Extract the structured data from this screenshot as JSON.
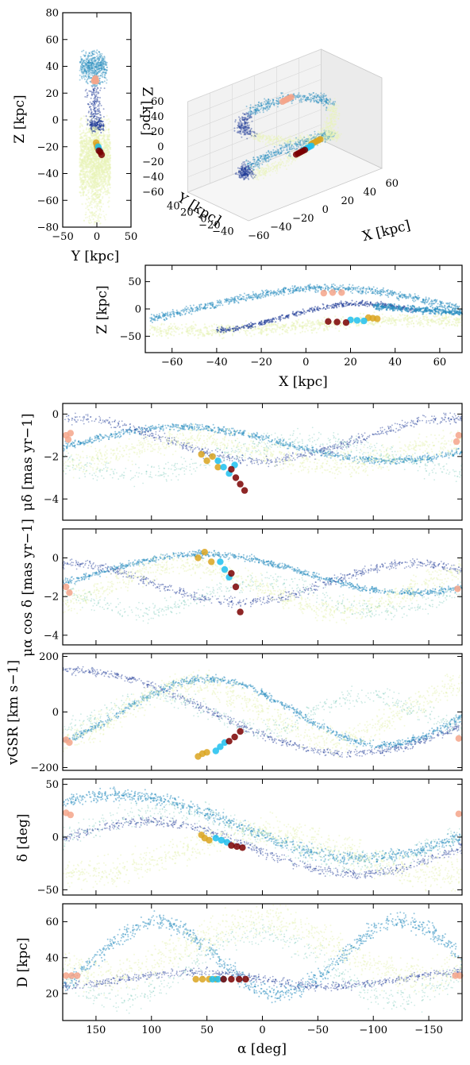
{
  "colors": {
    "stream_dark": "#0b1d5a",
    "stream_mid": "#243f99",
    "stream_teal": "#2a8ebf",
    "stream_light": "#7ecbbb",
    "stream_pale": "#e8f4b8",
    "obs_orange": "#daa520",
    "obs_cyan": "#1ec0ee",
    "obs_darkred": "#7a0000",
    "obs_salmon": "#f5a48a"
  },
  "chart_data": [
    {
      "id": "yz",
      "type": "scatter",
      "xlabel": "Y [kpc]",
      "ylabel": "Z [kpc]",
      "xlim": [
        -50,
        50
      ],
      "ylim": [
        -80,
        80
      ],
      "xticks": [
        "−50",
        "0",
        "50"
      ],
      "yticks": [
        "−80",
        "−60",
        "−40",
        "−20",
        "0",
        "20",
        "40",
        "60",
        "80"
      ],
      "series": [
        {
          "color": "obs_salmon",
          "x": [
            -4,
            -3,
            -2,
            -1
          ],
          "y": [
            29,
            30,
            31,
            29
          ]
        },
        {
          "color": "obs_orange",
          "x": [
            -1,
            0,
            1
          ],
          "y": [
            -17,
            -19,
            -21
          ]
        },
        {
          "color": "obs_cyan",
          "x": [
            2,
            3,
            4
          ],
          "y": [
            -20,
            -22,
            -23
          ]
        },
        {
          "color": "obs_darkred",
          "x": [
            3,
            5,
            7
          ],
          "y": [
            -23,
            -24,
            -26
          ]
        }
      ]
    },
    {
      "id": "xyz3d",
      "type": "scatter",
      "xlabel": "X [kpc]",
      "ylabel": "Y [kpc]",
      "zlabel": "Z [kpc]",
      "xticks": [
        "−60",
        "−40",
        "−20",
        "0",
        "20",
        "40",
        "60"
      ],
      "yticks": [
        "−40",
        "−20",
        "0",
        "20",
        "40"
      ],
      "zticks": [
        "−60",
        "−40",
        "−20",
        "0",
        "20",
        "40",
        "60"
      ]
    },
    {
      "id": "xz",
      "type": "scatter",
      "xlabel": "X [kpc]",
      "ylabel": "Z [kpc]",
      "xlim": [
        -72,
        70
      ],
      "ylim": [
        -80,
        80
      ],
      "xticks": [
        "−60",
        "−40",
        "−20",
        "0",
        "20",
        "40",
        "60"
      ],
      "yticks": [
        "−50",
        "0",
        "50"
      ],
      "series": [
        {
          "color": "obs_salmon",
          "x": [
            8,
            12,
            16
          ],
          "y": [
            29,
            30,
            30
          ]
        },
        {
          "color": "obs_orange",
          "x": [
            28,
            30,
            32
          ],
          "y": [
            -16,
            -17,
            -18
          ]
        },
        {
          "color": "obs_cyan",
          "x": [
            20,
            23,
            26
          ],
          "y": [
            -20,
            -21,
            -22
          ]
        },
        {
          "color": "obs_darkred",
          "x": [
            10,
            14,
            18
          ],
          "y": [
            -23,
            -24,
            -25
          ]
        }
      ]
    },
    {
      "id": "pmdec",
      "type": "scatter",
      "xlabel": "",
      "ylabel": "μ_δ [mas yr⁻¹]",
      "xlim": [
        180,
        -180
      ],
      "ylim": [
        -5,
        0.5
      ],
      "yticks": [
        "−4",
        "−2",
        "0"
      ],
      "series": [
        {
          "color": "obs_salmon",
          "x": [
            177,
            175,
            173,
            -177,
            -175
          ],
          "y": [
            -1.0,
            -1.2,
            -0.9,
            -1.0,
            -1.3
          ]
        },
        {
          "color": "obs_orange",
          "x": [
            55,
            50,
            45,
            40
          ],
          "y": [
            -1.9,
            -2.2,
            -2.0,
            -2.5
          ]
        },
        {
          "color": "obs_cyan",
          "x": [
            40,
            35,
            30,
            25
          ],
          "y": [
            -2.2,
            -2.5,
            -2.8,
            -2.4
          ]
        },
        {
          "color": "obs_darkred",
          "x": [
            28,
            24,
            20,
            16
          ],
          "y": [
            -2.6,
            -3.0,
            -3.3,
            -3.6
          ]
        }
      ]
    },
    {
      "id": "pmra",
      "type": "scatter",
      "xlabel": "",
      "ylabel": "μ_α cos δ [mas yr⁻¹]",
      "xlim": [
        180,
        -180
      ],
      "ylim": [
        -4.5,
        1.5
      ],
      "yticks": [
        "−4",
        "−2",
        "0"
      ],
      "series": [
        {
          "color": "obs_salmon",
          "x": [
            177,
            174,
            -176
          ],
          "y": [
            -1.5,
            -1.8,
            -1.6
          ]
        },
        {
          "color": "obs_orange",
          "x": [
            58,
            52,
            46
          ],
          "y": [
            0.0,
            0.3,
            -0.2
          ]
        },
        {
          "color": "obs_cyan",
          "x": [
            38,
            34,
            30
          ],
          "y": [
            -0.2,
            -0.6,
            -1.0
          ]
        },
        {
          "color": "obs_darkred",
          "x": [
            28,
            24,
            20
          ],
          "y": [
            -0.8,
            -1.5,
            -2.8
          ]
        }
      ]
    },
    {
      "id": "vgsr",
      "type": "scatter",
      "xlabel": "",
      "ylabel": "v_GSR [km s⁻¹]",
      "xlim": [
        180,
        -180
      ],
      "ylim": [
        -210,
        210
      ],
      "yticks": [
        "−200",
        "0",
        "200"
      ],
      "series": [
        {
          "color": "obs_salmon",
          "x": [
            177,
            174,
            -177
          ],
          "y": [
            -100,
            -110,
            -95
          ]
        },
        {
          "color": "obs_orange",
          "x": [
            58,
            54,
            50
          ],
          "y": [
            -160,
            -150,
            -145
          ]
        },
        {
          "color": "obs_cyan",
          "x": [
            42,
            38,
            34
          ],
          "y": [
            -140,
            -125,
            -110
          ]
        },
        {
          "color": "obs_darkred",
          "x": [
            30,
            25,
            20
          ],
          "y": [
            -105,
            -90,
            -70
          ]
        }
      ]
    },
    {
      "id": "dec",
      "type": "scatter",
      "xlabel": "",
      "ylabel": "δ [deg]",
      "xlim": [
        180,
        -180
      ],
      "ylim": [
        -55,
        55
      ],
      "yticks": [
        "−50",
        "0",
        "50"
      ],
      "series": [
        {
          "color": "obs_salmon",
          "x": [
            177,
            173,
            -177
          ],
          "y": [
            23,
            21,
            22
          ]
        },
        {
          "color": "obs_orange",
          "x": [
            55,
            52,
            48
          ],
          "y": [
            2,
            -1,
            -3
          ]
        },
        {
          "color": "obs_cyan",
          "x": [
            42,
            37,
            32
          ],
          "y": [
            -1,
            -3,
            -5
          ]
        },
        {
          "color": "obs_darkred",
          "x": [
            28,
            23,
            18
          ],
          "y": [
            -8,
            -9,
            -10
          ]
        }
      ]
    },
    {
      "id": "dist",
      "type": "scatter",
      "xlabel": "α [deg]",
      "ylabel": "D [kpc]",
      "xlim": [
        180,
        -180
      ],
      "ylim": [
        5,
        70
      ],
      "xticks": [
        "150",
        "100",
        "50",
        "0",
        "−50",
        "−100",
        "−150"
      ],
      "yticks": [
        "20",
        "40",
        "60"
      ],
      "series": [
        {
          "color": "obs_salmon",
          "x": [
            177,
            172,
            167,
            -174,
            -178
          ],
          "y": [
            30,
            30,
            30,
            30,
            30
          ]
        },
        {
          "color": "obs_orange",
          "x": [
            60,
            54,
            48,
            42
          ],
          "y": [
            28,
            28,
            28,
            28
          ]
        },
        {
          "color": "obs_cyan",
          "x": [
            45,
            40,
            35
          ],
          "y": [
            28,
            28,
            28
          ]
        },
        {
          "color": "obs_darkred",
          "x": [
            35,
            28,
            21,
            15
          ],
          "y": [
            28,
            28,
            28,
            28
          ]
        }
      ]
    }
  ],
  "labels": {
    "yz_x": "Y [kpc]",
    "yz_y": "Z [kpc]",
    "xz_x": "X [kpc]",
    "xz_y": "Z [kpc]",
    "d3_x": "X [kpc]",
    "d3_y": "Y [kpc]",
    "d3_z": "Z [kpc]",
    "pmdec_y": "μδ [mas yr−1]",
    "pmra_y": "μα cos δ [mas yr−1]",
    "vgsr_y": "vGSR [km s−1]",
    "dec_y": "δ [deg]",
    "dist_y": "D [kpc]",
    "ra_x": "α [deg]"
  }
}
